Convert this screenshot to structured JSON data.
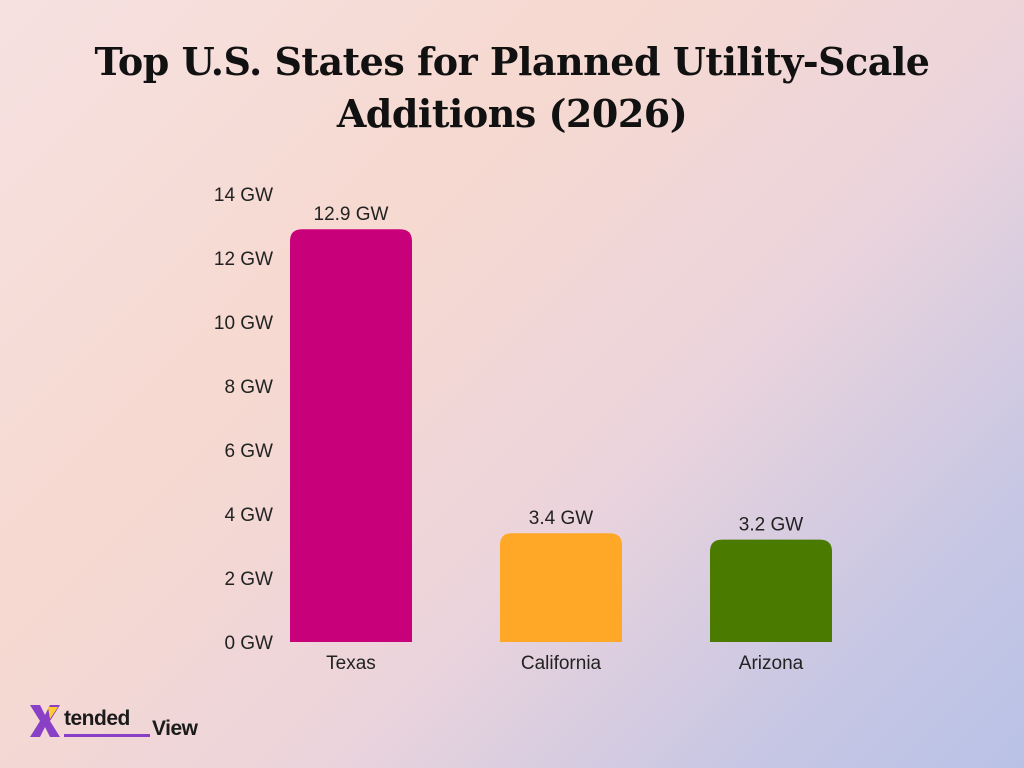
{
  "title_lines": [
    "Top U.S. States for Planned Utility-Scale",
    "Additions (2026)"
  ],
  "logo": {
    "part1": "tended",
    "part2": "View",
    "mark_color": "#8a3fc7"
  },
  "chart_data": {
    "type": "bar",
    "title": "Top U.S. States for Planned Utility-Scale Additions (2026)",
    "categories": [
      "Texas",
      "California",
      "Arizona"
    ],
    "values": [
      12.9,
      3.4,
      3.2
    ],
    "data_labels": [
      "12.9 GW",
      "3.4 GW",
      "3.2 GW"
    ],
    "colors": [
      "#c8007a",
      "#ffa726",
      "#4a7a00"
    ],
    "ylim": [
      0,
      14
    ],
    "yticks": [
      0,
      2,
      4,
      6,
      8,
      10,
      12,
      14
    ],
    "ytick_labels": [
      "0 GW",
      "2 GW",
      "4 GW",
      "6 GW",
      "8 GW",
      "10 GW",
      "12 GW",
      "14 GW"
    ],
    "xlabel": "",
    "ylabel": "",
    "grid": false,
    "legend": "none"
  }
}
